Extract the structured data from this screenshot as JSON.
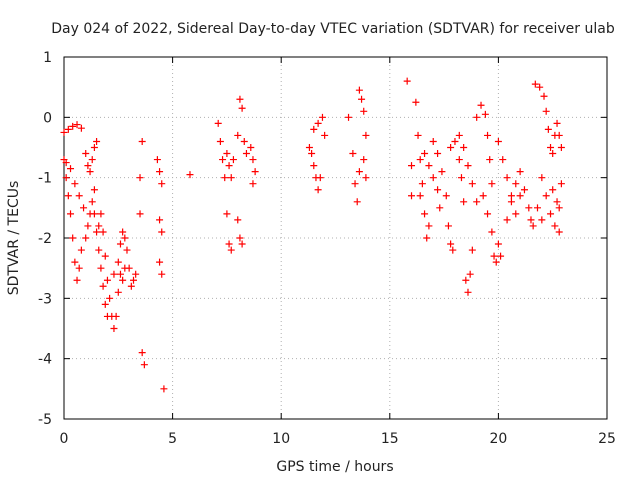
{
  "chart_data": {
    "type": "scatter",
    "title": "Day 024 of 2022, Sidereal Day-to-day VTEC variation (SDTVAR) for receiver ulab",
    "xlabel": "GPS time / hours",
    "ylabel": "SDTVAR / TECUs",
    "xlim": [
      0,
      25
    ],
    "ylim": [
      -5,
      1
    ],
    "xticks": [
      0,
      5,
      10,
      15,
      20,
      25
    ],
    "yticks": [
      -5,
      -4,
      -3,
      -2,
      -1,
      0,
      1
    ],
    "grid": true,
    "marker": "+",
    "color": "#ff0000",
    "series": [
      {
        "name": "SDTVAR",
        "points": [
          [
            0.0,
            -0.7
          ],
          [
            0.1,
            -1.0
          ],
          [
            0.2,
            -1.3
          ],
          [
            0.3,
            -1.6
          ],
          [
            0.4,
            -2.0
          ],
          [
            0.5,
            -2.4
          ],
          [
            0.6,
            -2.7
          ],
          [
            0.7,
            -2.5
          ],
          [
            0.8,
            -2.2
          ],
          [
            0.0,
            -0.25
          ],
          [
            0.2,
            -0.2
          ],
          [
            0.4,
            -0.15
          ],
          [
            0.6,
            -0.12
          ],
          [
            0.8,
            -0.18
          ],
          [
            0.1,
            -0.75
          ],
          [
            0.3,
            -0.85
          ],
          [
            0.5,
            -1.1
          ],
          [
            0.7,
            -1.3
          ],
          [
            0.9,
            -1.5
          ],
          [
            1.0,
            -2.0
          ],
          [
            1.1,
            -1.8
          ],
          [
            1.2,
            -1.6
          ],
          [
            1.3,
            -1.4
          ],
          [
            1.4,
            -1.2
          ],
          [
            1.0,
            -0.6
          ],
          [
            1.1,
            -0.8
          ],
          [
            1.2,
            -0.9
          ],
          [
            1.3,
            -0.7
          ],
          [
            1.4,
            -0.5
          ],
          [
            1.5,
            -0.4
          ],
          [
            1.4,
            -1.6
          ],
          [
            1.5,
            -1.9
          ],
          [
            1.6,
            -2.2
          ],
          [
            1.7,
            -2.5
          ],
          [
            1.8,
            -2.8
          ],
          [
            1.9,
            -3.1
          ],
          [
            2.0,
            -3.3
          ],
          [
            2.1,
            -3.0
          ],
          [
            1.6,
            -1.8
          ],
          [
            1.7,
            -1.6
          ],
          [
            1.8,
            -1.9
          ],
          [
            1.9,
            -2.3
          ],
          [
            2.0,
            -2.7
          ],
          [
            2.2,
            -3.3
          ],
          [
            2.3,
            -3.5
          ],
          [
            2.4,
            -3.3
          ],
          [
            2.5,
            -2.9
          ],
          [
            2.6,
            -2.6
          ],
          [
            2.7,
            -2.7
          ],
          [
            2.8,
            -2.5
          ],
          [
            2.3,
            -2.6
          ],
          [
            2.5,
            -2.4
          ],
          [
            2.6,
            -2.1
          ],
          [
            2.7,
            -1.9
          ],
          [
            2.8,
            -2.0
          ],
          [
            2.9,
            -2.2
          ],
          [
            3.0,
            -2.5
          ],
          [
            3.1,
            -2.8
          ],
          [
            3.2,
            -2.7
          ],
          [
            3.3,
            -2.6
          ],
          [
            3.5,
            -1.0
          ],
          [
            3.5,
            -1.6
          ],
          [
            3.6,
            -0.4
          ],
          [
            3.6,
            -3.9
          ],
          [
            3.7,
            -4.1
          ],
          [
            4.3,
            -0.7
          ],
          [
            4.4,
            -0.9
          ],
          [
            4.5,
            -1.1
          ],
          [
            4.4,
            -2.4
          ],
          [
            4.5,
            -2.6
          ],
          [
            4.4,
            -1.7
          ],
          [
            4.5,
            -1.9
          ],
          [
            4.6,
            -4.5
          ],
          [
            5.8,
            -0.95
          ],
          [
            7.1,
            -0.1
          ],
          [
            7.2,
            -0.4
          ],
          [
            7.3,
            -0.7
          ],
          [
            7.4,
            -1.0
          ],
          [
            7.5,
            -1.6
          ],
          [
            7.6,
            -2.1
          ],
          [
            7.7,
            -2.2
          ],
          [
            7.5,
            -0.6
          ],
          [
            7.6,
            -0.8
          ],
          [
            7.7,
            -1.0
          ],
          [
            7.8,
            -0.7
          ],
          [
            8.0,
            -1.7
          ],
          [
            8.1,
            -2.0
          ],
          [
            8.2,
            -2.1
          ],
          [
            8.0,
            -0.3
          ],
          [
            8.1,
            0.3
          ],
          [
            8.2,
            0.15
          ],
          [
            8.3,
            -0.4
          ],
          [
            8.4,
            -0.6
          ],
          [
            8.6,
            -0.5
          ],
          [
            8.7,
            -0.7
          ],
          [
            8.8,
            -0.9
          ],
          [
            8.7,
            -1.1
          ],
          [
            11.3,
            -0.5
          ],
          [
            11.4,
            -0.6
          ],
          [
            11.5,
            -0.8
          ],
          [
            11.6,
            -1.0
          ],
          [
            11.7,
            -1.2
          ],
          [
            11.8,
            -1.0
          ],
          [
            11.5,
            -0.2
          ],
          [
            11.7,
            -0.1
          ],
          [
            11.9,
            0.0
          ],
          [
            12.0,
            -0.3
          ],
          [
            13.1,
            0.0
          ],
          [
            13.3,
            -0.6
          ],
          [
            13.4,
            -1.1
          ],
          [
            13.5,
            -1.4
          ],
          [
            13.6,
            -0.9
          ],
          [
            13.6,
            0.45
          ],
          [
            13.7,
            0.3
          ],
          [
            13.8,
            0.1
          ],
          [
            13.9,
            -0.3
          ],
          [
            13.8,
            -0.7
          ],
          [
            13.9,
            -1.0
          ],
          [
            15.8,
            0.6
          ],
          [
            16.0,
            -0.8
          ],
          [
            16.0,
            -1.3
          ],
          [
            16.2,
            0.25
          ],
          [
            16.3,
            -0.3
          ],
          [
            16.4,
            -0.7
          ],
          [
            16.5,
            -1.1
          ],
          [
            16.6,
            -1.6
          ],
          [
            16.7,
            -2.0
          ],
          [
            16.8,
            -1.8
          ],
          [
            16.4,
            -1.3
          ],
          [
            16.6,
            -0.6
          ],
          [
            16.8,
            -0.8
          ],
          [
            17.0,
            -1.0
          ],
          [
            17.2,
            -1.2
          ],
          [
            17.3,
            -1.5
          ],
          [
            17.0,
            -0.4
          ],
          [
            17.2,
            -0.6
          ],
          [
            17.4,
            -0.9
          ],
          [
            17.6,
            -1.3
          ],
          [
            17.7,
            -1.8
          ],
          [
            17.8,
            -2.1
          ],
          [
            17.9,
            -2.2
          ],
          [
            17.8,
            -0.5
          ],
          [
            18.0,
            -0.4
          ],
          [
            18.2,
            -0.7
          ],
          [
            18.3,
            -1.0
          ],
          [
            18.4,
            -1.4
          ],
          [
            18.2,
            -0.3
          ],
          [
            18.4,
            -0.5
          ],
          [
            18.6,
            -0.8
          ],
          [
            18.8,
            -1.1
          ],
          [
            19.0,
            -1.4
          ],
          [
            18.5,
            -2.7
          ],
          [
            18.6,
            -2.9
          ],
          [
            18.7,
            -2.6
          ],
          [
            18.8,
            -2.2
          ],
          [
            19.0,
            0.0
          ],
          [
            19.2,
            0.2
          ],
          [
            19.4,
            0.05
          ],
          [
            19.5,
            -0.3
          ],
          [
            19.6,
            -0.7
          ],
          [
            19.7,
            -1.1
          ],
          [
            19.3,
            -1.3
          ],
          [
            19.5,
            -1.6
          ],
          [
            19.7,
            -1.9
          ],
          [
            19.8,
            -2.3
          ],
          [
            19.9,
            -2.4
          ],
          [
            20.0,
            -2.1
          ],
          [
            20.1,
            -2.3
          ],
          [
            20.0,
            -0.4
          ],
          [
            20.2,
            -0.7
          ],
          [
            20.4,
            -1.0
          ],
          [
            20.6,
            -1.3
          ],
          [
            20.8,
            -1.6
          ],
          [
            21.0,
            -1.3
          ],
          [
            20.4,
            -1.7
          ],
          [
            20.6,
            -1.4
          ],
          [
            20.8,
            -1.1
          ],
          [
            21.0,
            -0.9
          ],
          [
            21.2,
            -1.2
          ],
          [
            21.4,
            -1.5
          ],
          [
            21.5,
            -1.7
          ],
          [
            21.6,
            -1.8
          ],
          [
            21.8,
            -1.5
          ],
          [
            22.0,
            -1.7
          ],
          [
            21.7,
            0.55
          ],
          [
            21.9,
            0.5
          ],
          [
            22.1,
            0.35
          ],
          [
            22.2,
            0.1
          ],
          [
            22.3,
            -0.2
          ],
          [
            22.4,
            -0.5
          ],
          [
            22.0,
            -1.0
          ],
          [
            22.2,
            -1.3
          ],
          [
            22.4,
            -1.6
          ],
          [
            22.6,
            -1.8
          ],
          [
            22.8,
            -1.9
          ],
          [
            22.5,
            -0.6
          ],
          [
            22.6,
            -0.3
          ],
          [
            22.7,
            -0.1
          ],
          [
            22.8,
            -0.3
          ],
          [
            22.9,
            -0.5
          ],
          [
            22.5,
            -1.2
          ],
          [
            22.7,
            -1.4
          ],
          [
            22.8,
            -1.5
          ],
          [
            22.9,
            -1.1
          ]
        ]
      }
    ]
  }
}
